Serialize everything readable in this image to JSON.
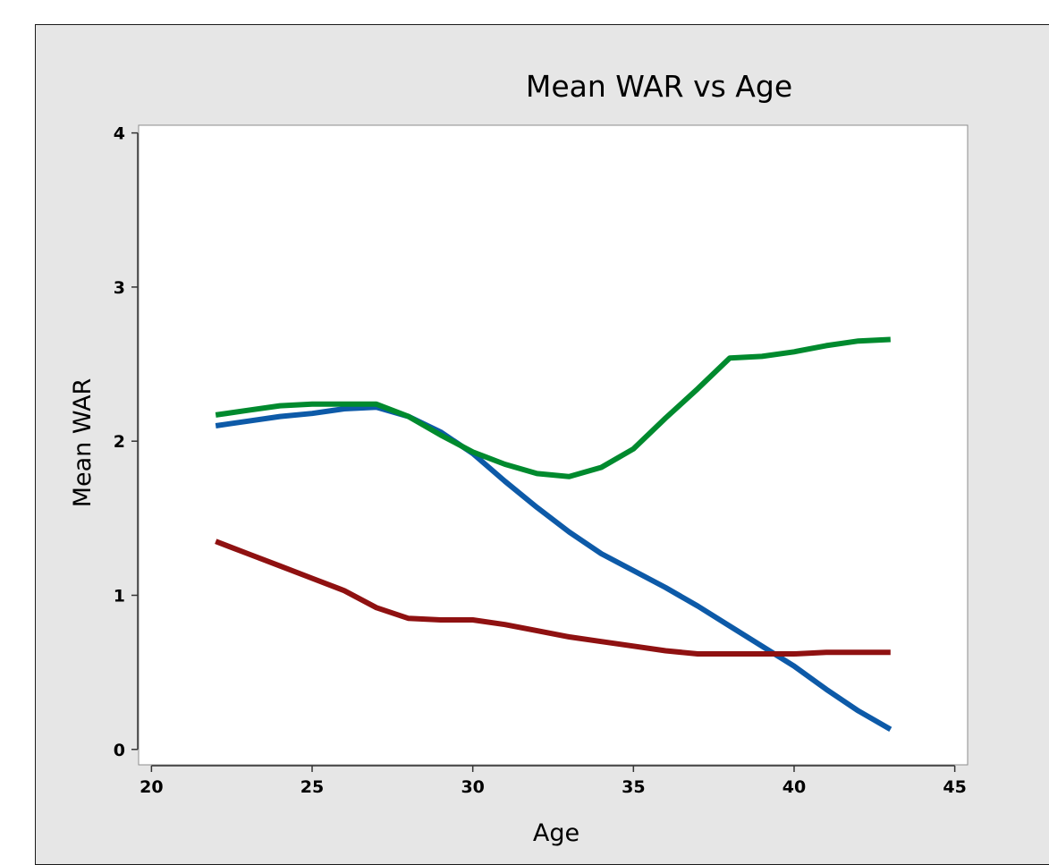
{
  "chart_data": {
    "type": "line",
    "title": "Mean WAR vs Age",
    "xlabel": "Age",
    "ylabel": "Mean WAR",
    "xlim": [
      19.6,
      45.4
    ],
    "ylim": [
      -0.1,
      4.05
    ],
    "xticks": [
      20,
      25,
      30,
      35,
      40,
      45
    ],
    "yticks": [
      0,
      1,
      2,
      3,
      4
    ],
    "grid": false,
    "legend": "none",
    "x": [
      22,
      23,
      24,
      25,
      26,
      27,
      28,
      29,
      30,
      31,
      32,
      33,
      34,
      35,
      36,
      37,
      38,
      39,
      40,
      41,
      42,
      43
    ],
    "series": [
      {
        "color": "#0d5aa8",
        "values": [
          2.1,
          2.13,
          2.16,
          2.18,
          2.21,
          2.22,
          2.16,
          2.06,
          1.92,
          1.74,
          1.57,
          1.41,
          1.27,
          1.16,
          1.05,
          0.93,
          0.8,
          0.67,
          0.54,
          0.39,
          0.25,
          0.13
        ]
      },
      {
        "color": "#008a2e",
        "values": [
          2.17,
          2.2,
          2.23,
          2.24,
          2.24,
          2.24,
          2.16,
          2.04,
          1.93,
          1.85,
          1.79,
          1.77,
          1.83,
          1.95,
          2.15,
          2.34,
          2.54,
          2.55,
          2.58,
          2.62,
          2.65,
          2.66
        ]
      },
      {
        "color": "#8f1111",
        "values": [
          1.35,
          1.27,
          1.19,
          1.11,
          1.03,
          0.92,
          0.85,
          0.84,
          0.84,
          0.81,
          0.77,
          0.73,
          0.7,
          0.67,
          0.64,
          0.62,
          0.62,
          0.62,
          0.62,
          0.63,
          0.63,
          0.63
        ]
      }
    ]
  }
}
